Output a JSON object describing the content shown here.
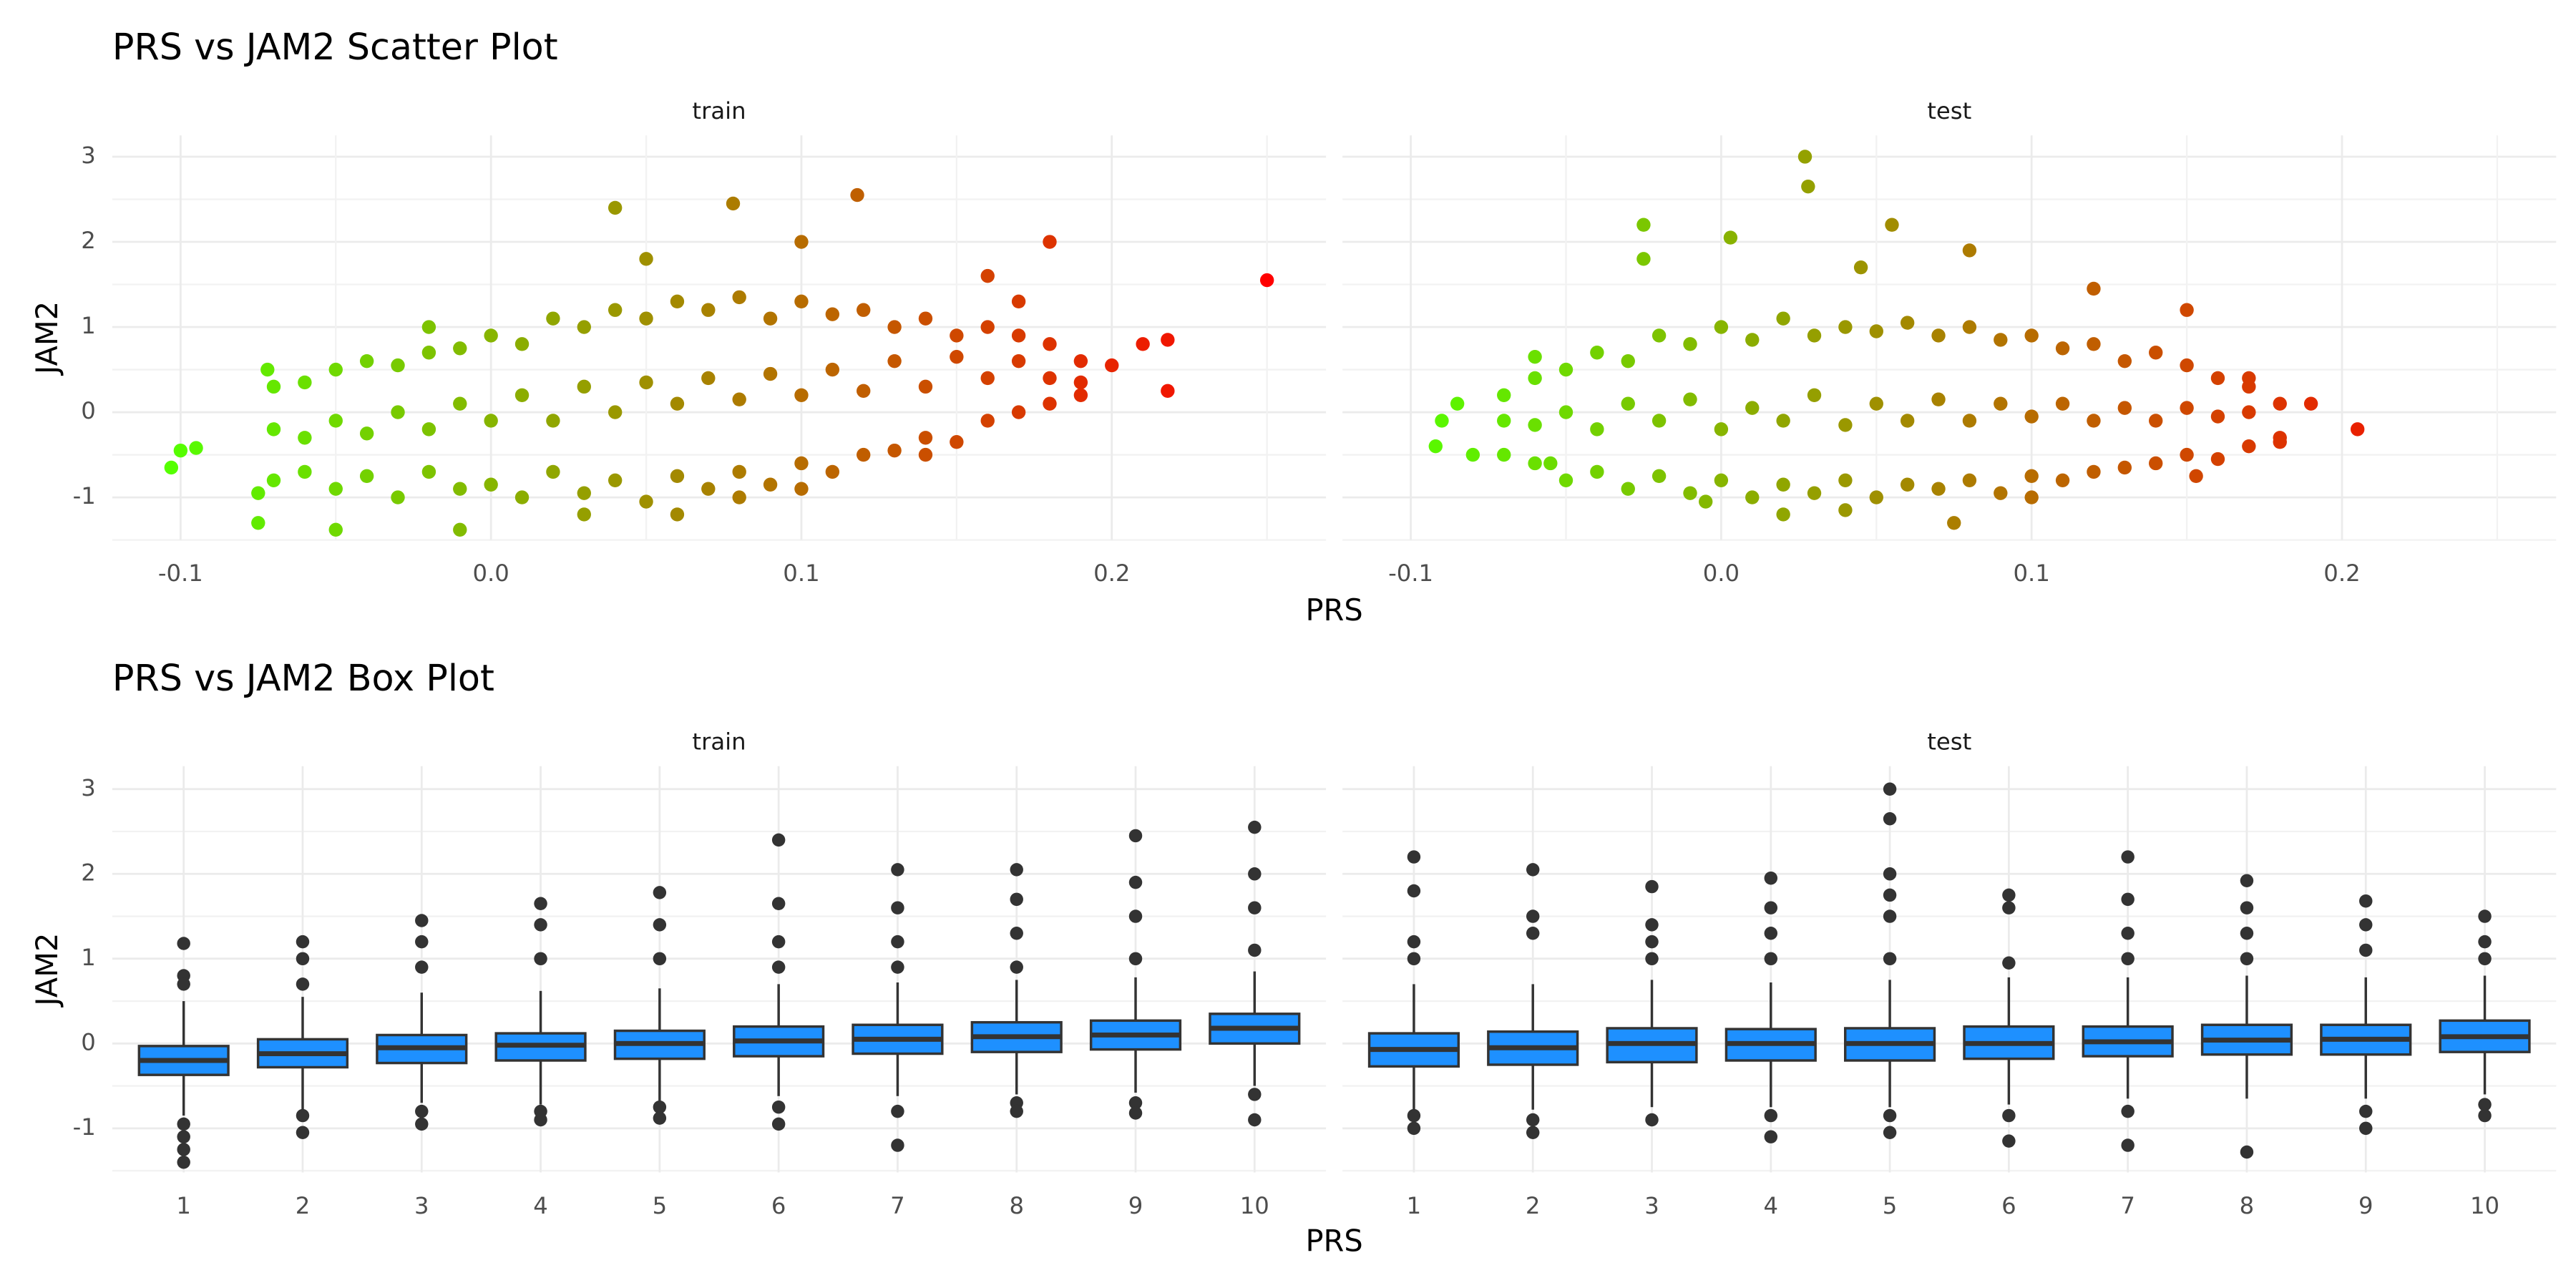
{
  "chart_data": [
    {
      "type": "scatter",
      "title": "PRS vs JAM2 Scatter Plot",
      "x_label": "PRS",
      "y_label": "JAM2",
      "xlim": [
        -0.122,
        0.269
      ],
      "ylim": [
        -1.5,
        3.25
      ],
      "xticks": [
        -0.1,
        {
          "value": 0,
          "label": "0.0"
        },
        0.1,
        0.2
      ],
      "yticks": [
        -1,
        0,
        1,
        2,
        3
      ],
      "grid": true,
      "color_low": "#55ff00",
      "color_high": "#ff0000",
      "panels": [
        {
          "name": "train",
          "x": [
            -0.103,
            -0.1,
            -0.095,
            -0.075,
            -0.075,
            -0.072,
            -0.05,
            -0.01,
            0.06,
            0.04,
            0.078,
            0.118,
            0.18,
            0.25,
            0.218,
            0.218,
            0.21,
            0.2,
            0.19,
            0.16,
            0.17,
            0.1,
            0.05,
            -0.02,
            0.14,
            0.1,
            0.08,
            0.03,
            -0.07,
            -0.07,
            -0.07,
            -0.06,
            -0.06,
            -0.06,
            -0.05,
            -0.05,
            -0.05,
            -0.04,
            -0.04,
            -0.04,
            -0.03,
            -0.03,
            -0.03,
            -0.02,
            -0.02,
            -0.02,
            -0.01,
            -0.01,
            -0.01,
            0,
            0,
            0,
            0.01,
            0.01,
            0.01,
            0.02,
            0.02,
            0.02,
            0.03,
            0.03,
            0.03,
            0.04,
            0.04,
            0.04,
            0.05,
            0.05,
            0.05,
            0.06,
            0.06,
            0.06,
            0.07,
            0.07,
            0.07,
            0.08,
            0.08,
            0.08,
            0.09,
            0.09,
            0.09,
            0.1,
            0.1,
            0.1,
            0.11,
            0.11,
            0.11,
            0.12,
            0.12,
            0.12,
            0.13,
            0.13,
            0.13,
            0.14,
            0.14,
            0.14,
            0.15,
            0.15,
            0.15,
            0.16,
            0.16,
            0.16,
            0.17,
            0.17,
            0.17,
            0.18,
            0.18,
            0.18,
            0.19,
            0.19
          ],
          "y": [
            -0.65,
            -0.45,
            -0.42,
            -1.3,
            -0.95,
            0.5,
            -1.38,
            -1.38,
            -1.2,
            2.4,
            2.45,
            2.55,
            2.0,
            1.55,
            0.85,
            0.25,
            0.8,
            0.55,
            0.35,
            1.6,
            1.3,
            2.0,
            1.8,
            1.0,
            -0.5,
            -0.9,
            -1.0,
            -1.2,
            -0.8,
            -0.2,
            0.3,
            -0.7,
            -0.3,
            0.35,
            -0.9,
            -0.1,
            0.5,
            -0.75,
            -0.25,
            0.6,
            -1.0,
            0.0,
            0.55,
            -0.7,
            -0.2,
            0.7,
            -0.9,
            0.1,
            0.75,
            -0.85,
            -0.1,
            0.9,
            -1.0,
            0.2,
            0.8,
            -0.7,
            -0.1,
            1.1,
            -0.95,
            0.3,
            1.0,
            -0.8,
            0.0,
            1.2,
            -1.05,
            0.35,
            1.1,
            -0.75,
            0.1,
            1.3,
            -0.9,
            0.4,
            1.2,
            -0.7,
            0.15,
            1.35,
            -0.85,
            0.45,
            1.1,
            -0.6,
            0.2,
            1.3,
            -0.7,
            0.5,
            1.15,
            -0.5,
            0.25,
            1.2,
            -0.45,
            0.6,
            1.0,
            -0.3,
            0.3,
            1.1,
            -0.35,
            0.65,
            0.9,
            -0.1,
            0.4,
            1.0,
            0.0,
            0.6,
            0.9,
            0.1,
            0.4,
            0.8,
            0.2,
            0.6
          ]
        },
        {
          "name": "test",
          "x": [
            -0.092,
            -0.09,
            -0.085,
            -0.08,
            -0.06,
            -0.055,
            -0.025,
            -0.025,
            0.003,
            0.027,
            0.028,
            0.055,
            0.045,
            0.08,
            0.12,
            0.15,
            0.153,
            0.205,
            0.19,
            0.18,
            0.17,
            0.02,
            0.04,
            0.075,
            0.1,
            -0.005,
            -0.07,
            -0.07,
            -0.07,
            -0.06,
            -0.06,
            -0.06,
            -0.05,
            -0.05,
            -0.05,
            -0.04,
            -0.04,
            -0.04,
            -0.03,
            -0.03,
            -0.03,
            -0.02,
            -0.02,
            -0.02,
            -0.01,
            -0.01,
            -0.01,
            0,
            0,
            0,
            0.01,
            0.01,
            0.01,
            0.02,
            0.02,
            0.02,
            0.03,
            0.03,
            0.03,
            0.04,
            0.04,
            0.04,
            0.05,
            0.05,
            0.05,
            0.06,
            0.06,
            0.06,
            0.07,
            0.07,
            0.07,
            0.08,
            0.08,
            0.08,
            0.09,
            0.09,
            0.09,
            0.1,
            0.1,
            0.1,
            0.11,
            0.11,
            0.11,
            0.12,
            0.12,
            0.12,
            0.13,
            0.13,
            0.13,
            0.14,
            0.14,
            0.14,
            0.15,
            0.15,
            0.15,
            0.16,
            0.16,
            0.16,
            0.17,
            0.17,
            0.17,
            0.18,
            0.18
          ],
          "y": [
            -0.4,
            -0.1,
            0.1,
            -0.5,
            0.65,
            -0.6,
            2.2,
            1.8,
            2.05,
            3.0,
            2.65,
            2.2,
            1.7,
            1.9,
            1.45,
            1.2,
            -0.75,
            -0.2,
            0.1,
            -0.3,
            0.4,
            -1.2,
            -1.15,
            -1.3,
            -1.0,
            -1.05,
            -0.5,
            -0.1,
            0.2,
            -0.6,
            -0.15,
            0.4,
            -0.8,
            0.0,
            0.5,
            -0.7,
            -0.2,
            0.7,
            -0.9,
            0.1,
            0.6,
            -0.75,
            -0.1,
            0.9,
            -0.95,
            0.15,
            0.8,
            -0.8,
            -0.2,
            1.0,
            -1.0,
            0.05,
            0.85,
            -0.85,
            -0.1,
            1.1,
            -0.95,
            0.2,
            0.9,
            -0.8,
            -0.15,
            1.0,
            -1.0,
            0.1,
            0.95,
            -0.85,
            -0.1,
            1.05,
            -0.9,
            0.15,
            0.9,
            -0.8,
            -0.1,
            1.0,
            -0.95,
            0.1,
            0.85,
            -0.75,
            -0.05,
            0.9,
            -0.8,
            0.1,
            0.75,
            -0.7,
            -0.1,
            0.8,
            -0.65,
            0.05,
            0.6,
            -0.6,
            -0.1,
            0.7,
            -0.5,
            0.05,
            0.55,
            -0.55,
            -0.05,
            0.4,
            -0.4,
            0.0,
            0.3,
            -0.35,
            0.1
          ]
        }
      ]
    },
    {
      "type": "box",
      "title": "PRS vs JAM2 Box Plot",
      "x_label": "PRS",
      "y_label": "JAM2",
      "ylim": [
        -1.52,
        3.27
      ],
      "yticks": [
        -1,
        0,
        1,
        2,
        3
      ],
      "grid": true,
      "color": "#1e90ff",
      "categories": [
        "1",
        "2",
        "3",
        "4",
        "5",
        "6",
        "7",
        "8",
        "9",
        "10"
      ],
      "panels": [
        {
          "name": "train",
          "whisker_low": [
            -0.85,
            -0.78,
            -0.7,
            -0.72,
            -0.68,
            -0.62,
            -0.62,
            -0.6,
            -0.58,
            -0.5
          ],
          "q1": [
            -0.37,
            -0.28,
            -0.23,
            -0.2,
            -0.18,
            -0.15,
            -0.12,
            -0.1,
            -0.07,
            0
          ],
          "median": [
            -0.2,
            -0.12,
            -0.05,
            -0.02,
            0.0,
            0.03,
            0.05,
            0.08,
            0.1,
            0.18
          ],
          "q3": [
            -0.03,
            0.05,
            0.1,
            0.12,
            0.15,
            0.2,
            0.22,
            0.25,
            0.27,
            0.35
          ],
          "whisker_high": [
            0.5,
            0.55,
            0.6,
            0.62,
            0.65,
            0.7,
            0.72,
            0.75,
            0.78,
            0.85
          ],
          "outliers": [
            [
              1.18,
              0.8,
              0.7,
              -0.95,
              -1.1,
              -1.25,
              -1.4
            ],
            [
              1.2,
              1.0,
              0.7,
              -0.85,
              -1.05
            ],
            [
              1.45,
              1.2,
              0.9,
              -0.8,
              -0.95
            ],
            [
              1.65,
              1.4,
              1.0,
              -0.8,
              -0.9
            ],
            [
              1.78,
              1.4,
              1.0,
              -0.75,
              -0.88
            ],
            [
              2.4,
              1.65,
              1.2,
              0.9,
              -0.75,
              -0.95
            ],
            [
              2.05,
              1.6,
              1.2,
              0.9,
              -0.8,
              -1.2
            ],
            [
              2.05,
              1.7,
              1.3,
              0.9,
              -0.7,
              -0.8
            ],
            [
              2.45,
              1.9,
              1.5,
              1.0,
              -0.7,
              -0.82
            ],
            [
              2.55,
              2.0,
              1.6,
              1.1,
              -0.6,
              -0.9
            ]
          ]
        },
        {
          "name": "test",
          "whisker_low": [
            -0.8,
            -0.78,
            -0.75,
            -0.75,
            -0.75,
            -0.72,
            -0.65,
            -0.65,
            -0.65,
            -0.6
          ],
          "q1": [
            -0.27,
            -0.25,
            -0.22,
            -0.2,
            -0.2,
            -0.18,
            -0.15,
            -0.13,
            -0.13,
            -0.1
          ],
          "median": [
            -0.07,
            -0.05,
            0,
            0,
            0,
            0,
            0.02,
            0.04,
            0.05,
            0.08
          ],
          "q3": [
            0.12,
            0.14,
            0.18,
            0.17,
            0.18,
            0.2,
            0.2,
            0.22,
            0.22,
            0.27
          ],
          "whisker_high": [
            0.7,
            0.7,
            0.75,
            0.72,
            0.75,
            0.78,
            0.78,
            0.8,
            0.78,
            0.8
          ],
          "outliers": [
            [
              2.2,
              1.8,
              1.2,
              1.0,
              -0.85,
              -1.0
            ],
            [
              2.05,
              1.5,
              1.3,
              -0.9,
              -1.05
            ],
            [
              1.85,
              1.4,
              1.2,
              1.0,
              -0.9
            ],
            [
              1.95,
              1.6,
              1.3,
              1.0,
              -0.85,
              -1.1
            ],
            [
              3.0,
              2.65,
              2.0,
              1.75,
              1.5,
              1.0,
              -0.85,
              -1.05
            ],
            [
              1.75,
              1.6,
              0.95,
              -0.85,
              -1.15
            ],
            [
              2.2,
              1.7,
              1.3,
              1.0,
              -0.8,
              -1.2
            ],
            [
              1.92,
              1.6,
              1.3,
              1.0,
              -1.28
            ],
            [
              1.68,
              1.4,
              1.1,
              -0.8,
              -1.0
            ],
            [
              1.5,
              1.2,
              1.0,
              -0.72,
              -0.85
            ]
          ]
        }
      ]
    }
  ]
}
